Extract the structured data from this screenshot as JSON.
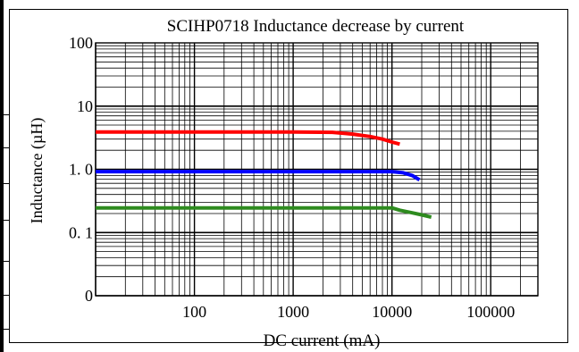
{
  "chart_data": {
    "type": "line",
    "title": "SCIHP0718 Inductance decrease by current",
    "xlabel": "DC current (mA)",
    "ylabel": "Inductance (µH)",
    "x_scale": "log",
    "y_scale": "log",
    "xlim": [
      10,
      300000
    ],
    "ylim": [
      0.01,
      100
    ],
    "x_ticks": [
      {
        "value": 100,
        "label": "100"
      },
      {
        "value": 1000,
        "label": "1000"
      },
      {
        "value": 10000,
        "label": "10000"
      },
      {
        "value": 100000,
        "label": "100000"
      }
    ],
    "y_ticks": [
      {
        "value": 100,
        "label": "100"
      },
      {
        "value": 10,
        "label": "10"
      },
      {
        "value": 1,
        "label": "1. 0"
      },
      {
        "value": 0.1,
        "label": "0. 1"
      },
      {
        "value": 0.01,
        "label": "0"
      }
    ],
    "grid": true,
    "series": [
      {
        "color": "#ff0000",
        "x": [
          10,
          100,
          1000,
          2500,
          4000,
          6000,
          8000,
          10000,
          12000
        ],
        "y": [
          3.9,
          3.9,
          3.9,
          3.85,
          3.6,
          3.3,
          3.0,
          2.7,
          2.5
        ]
      },
      {
        "color": "#0000ff",
        "x": [
          10,
          100,
          1000,
          10000,
          13000,
          16000,
          19000
        ],
        "y": [
          0.92,
          0.92,
          0.92,
          0.92,
          0.88,
          0.8,
          0.68
        ]
      },
      {
        "color": "#2e8b1f",
        "x": [
          10,
          100,
          1000,
          10000,
          12000,
          16000,
          20000,
          25000
        ],
        "y": [
          0.245,
          0.245,
          0.245,
          0.245,
          0.225,
          0.205,
          0.19,
          0.175
        ]
      }
    ]
  }
}
